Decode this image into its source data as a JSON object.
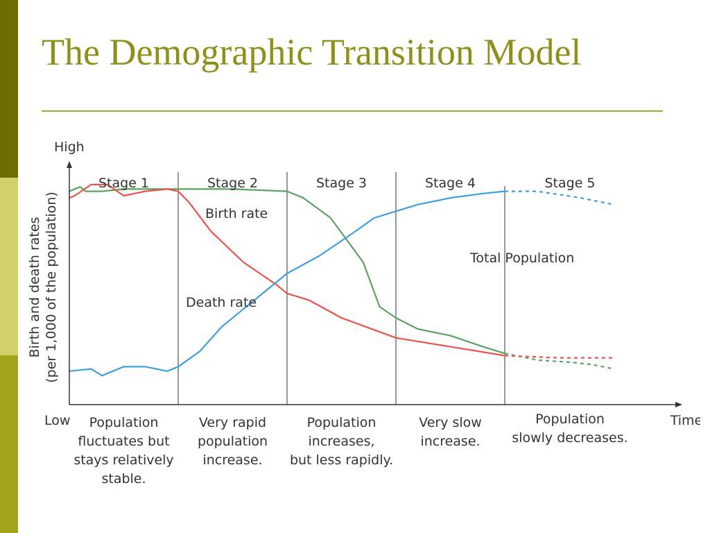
{
  "slide": {
    "title": "The Demographic Transition Model",
    "theme_colors": {
      "bar_dark": "#6b6d00",
      "bar_light": "#cfd26a",
      "bar_mid": "#9fa41a",
      "title": "#8f8f1b"
    }
  },
  "chart_data": {
    "type": "line",
    "y_axis": {
      "high_label": "High",
      "low_label": "Low",
      "title_line1": "Birth and death rates",
      "title_line2": "(per 1,000 of the population)"
    },
    "x_axis": {
      "label": "Time"
    },
    "stages": [
      {
        "label": "Stage 1",
        "start": 0,
        "end": 1,
        "description": [
          "Population",
          "fluctuates but",
          "stays relatively",
          "stable."
        ]
      },
      {
        "label": "Stage 2",
        "start": 1,
        "end": 2,
        "description": [
          "Very rapid",
          "population",
          "increase."
        ]
      },
      {
        "label": "Stage 3",
        "start": 2,
        "end": 3,
        "description": [
          "Population",
          "increases,",
          "but less rapidly."
        ]
      },
      {
        "label": "Stage 4",
        "start": 3,
        "end": 4,
        "description": [
          "Very slow",
          "increase."
        ]
      },
      {
        "label": "Stage 5",
        "start": 4,
        "end": 5.6,
        "description": [
          "Population",
          "slowly decreases."
        ]
      }
    ],
    "xlim": [
      0,
      5.6
    ],
    "ylim": [
      0,
      100
    ],
    "series": [
      {
        "name": "Birth rate",
        "color": "#5aa35f",
        "x": [
          0,
          0.1,
          0.15,
          0.3,
          0.5,
          0.8,
          1.0,
          1.5,
          2.0,
          2.15,
          2.4,
          2.7,
          2.85,
          3.0,
          3.2,
          3.5,
          3.8,
          4.0
        ],
        "y": [
          92,
          94,
          92,
          92,
          93,
          93,
          93,
          93,
          92,
          89,
          80,
          60,
          40,
          35,
          30,
          27,
          22,
          19
        ],
        "projection": {
          "x": [
            4.0,
            4.3,
            4.6,
            4.8,
            5.0
          ],
          "y": [
            19,
            16,
            15,
            14,
            12
          ]
        }
      },
      {
        "name": "Death rate",
        "color": "#e8534b",
        "x": [
          0,
          0.05,
          0.2,
          0.35,
          0.5,
          0.7,
          0.9,
          1.0,
          1.1,
          1.3,
          1.6,
          1.9,
          2.0,
          2.2,
          2.5,
          3.0,
          3.5,
          4.0
        ],
        "y": [
          89,
          90,
          95,
          95,
          90,
          92,
          93,
          92,
          87,
          74,
          60,
          50,
          46,
          43,
          35,
          26,
          22,
          18
        ],
        "projection": {
          "x": [
            4.0,
            4.5,
            5.0
          ],
          "y": [
            18,
            17,
            17
          ]
        }
      },
      {
        "name": "Total Population",
        "color": "#3a9ee0",
        "x": [
          0,
          0.2,
          0.3,
          0.5,
          0.7,
          0.9,
          1.0,
          1.2,
          1.4,
          1.6,
          1.8,
          2.0,
          2.3,
          2.6,
          2.8,
          3.0,
          3.2,
          3.5,
          3.8,
          4.0
        ],
        "y": [
          11,
          12,
          9,
          13,
          13,
          11,
          13,
          20,
          31,
          39,
          47,
          55,
          63,
          73,
          80,
          83,
          86,
          89,
          91,
          92
        ],
        "projection": {
          "x": [
            4.0,
            4.3,
            4.7,
            5.0
          ],
          "y": [
            92,
            92,
            89,
            86
          ]
        }
      }
    ]
  }
}
